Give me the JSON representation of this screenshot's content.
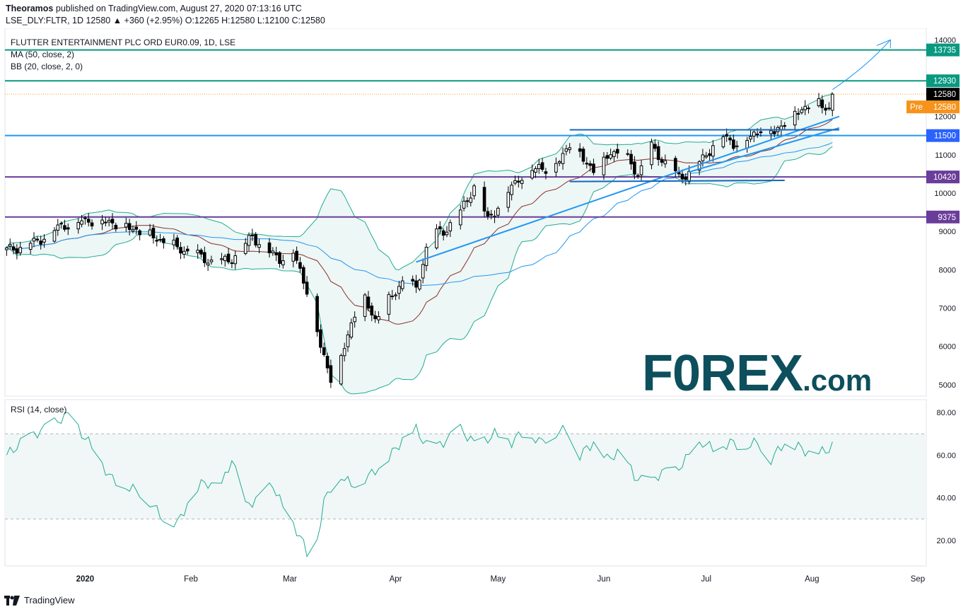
{
  "header": {
    "author": "Theoramos",
    "published": "published on TradingView.com, August 27, 2020 07:13:16 UTC",
    "symbol_line": "LSE_DLY:FLTR, 1D  12580  ▲ +360 (+2.95%)  O:12265  H:12580  L:12100  C:12580"
  },
  "legend": {
    "title": "FLUTTER ENTERTAINMENT PLC ORD EUR0.09, 1D, LSE",
    "ma": "MA (50, close, 2)",
    "bb": "BB (20, close, 2, 0)",
    "rsi": "RSI (14, close)"
  },
  "branding": {
    "tradingview": "TradingView",
    "forex": "F0REX",
    "forex_suffix": ".com"
  },
  "chart_data": {
    "type": "candlestick",
    "price_axis": {
      "ylim": [
        4700,
        14300
      ],
      "ticks": [
        5000,
        6000,
        7000,
        8000,
        9000,
        10000,
        11000,
        12000,
        13000,
        14000
      ]
    },
    "rsi_axis": {
      "ylim": [
        8,
        86
      ],
      "ticks": [
        20.0,
        40.0,
        60.0,
        80.0
      ],
      "bands": [
        30,
        70
      ]
    },
    "x_axis": {
      "labels": [
        {
          "text": "2020",
          "day": 23,
          "bold": true
        },
        {
          "text": "Feb",
          "day": 54
        },
        {
          "text": "Mar",
          "day": 83
        },
        {
          "text": "Apr",
          "day": 114
        },
        {
          "text": "May",
          "day": 144
        },
        {
          "text": "Jun",
          "day": 175
        },
        {
          "text": "Jul",
          "day": 205
        },
        {
          "text": "Aug",
          "day": 236
        },
        {
          "text": "Sep",
          "day": 267
        }
      ]
    },
    "level_labels": [
      {
        "value": 13735,
        "text": "13735",
        "color": "#089981"
      },
      {
        "value": 12930,
        "text": "12930",
        "color": "#089981"
      },
      {
        "value": 12580,
        "text": "12580",
        "color": "#000000"
      },
      {
        "value": 11500,
        "text": "11500",
        "color": "#2962ff"
      },
      {
        "value": 10420,
        "text": "10420",
        "color": "#6a3d9a"
      },
      {
        "value": 9375,
        "text": "9375",
        "color": "#6a3d9a"
      }
    ],
    "pre_label": {
      "tag": "Pre",
      "value": 12580,
      "text": "12580",
      "color": "#f7931a"
    },
    "horizontal_lines": [
      {
        "value": 13735,
        "color": "#089981"
      },
      {
        "value": 12930,
        "color": "#089981"
      },
      {
        "value": 11500,
        "color": "#2196f3"
      },
      {
        "value": 10420,
        "color": "#6a3d9a"
      },
      {
        "value": 9375,
        "color": "#6a3d9a"
      }
    ],
    "current_price": 12580,
    "close_anchors": [
      [
        0,
        8500
      ],
      [
        8,
        8700
      ],
      [
        16,
        9150
      ],
      [
        24,
        9300
      ],
      [
        30,
        9250
      ],
      [
        36,
        9100
      ],
      [
        42,
        8900
      ],
      [
        48,
        8650
      ],
      [
        55,
        8400
      ],
      [
        62,
        8150
      ],
      [
        68,
        8400
      ],
      [
        72,
        8900
      ],
      [
        76,
        8500
      ],
      [
        80,
        8300
      ],
      [
        84,
        8450
      ],
      [
        88,
        7500
      ],
      [
        92,
        6000
      ],
      [
        95,
        5200
      ],
      [
        98,
        5700
      ],
      [
        101,
        6600
      ],
      [
        104,
        7400
      ],
      [
        108,
        6700
      ],
      [
        112,
        7200
      ],
      [
        116,
        7700
      ],
      [
        120,
        7500
      ],
      [
        124,
        8900
      ],
      [
        128,
        9000
      ],
      [
        133,
        9500
      ],
      [
        137,
        10200
      ],
      [
        141,
        9300
      ],
      [
        145,
        9800
      ],
      [
        150,
        10400
      ],
      [
        156,
        10700
      ],
      [
        160,
        10600
      ],
      [
        165,
        11300
      ],
      [
        169,
        10900
      ],
      [
        173,
        10500
      ],
      [
        177,
        11100
      ],
      [
        181,
        11000
      ],
      [
        185,
        10500
      ],
      [
        189,
        11200
      ],
      [
        193,
        10800
      ],
      [
        197,
        10400
      ],
      [
        201,
        10600
      ],
      [
        205,
        11000
      ],
      [
        209,
        11550
      ],
      [
        213,
        11300
      ],
      [
        217,
        11400
      ],
      [
        221,
        11700
      ],
      [
        225,
        11600
      ],
      [
        229,
        11950
      ],
      [
        233,
        12200
      ],
      [
        237,
        12400
      ],
      [
        241,
        12200
      ],
      [
        244,
        12580
      ]
    ],
    "rsi_anchors": [
      [
        0,
        60
      ],
      [
        6,
        68
      ],
      [
        12,
        73
      ],
      [
        18,
        79
      ],
      [
        22,
        70
      ],
      [
        26,
        62
      ],
      [
        30,
        50
      ],
      [
        34,
        46
      ],
      [
        40,
        42
      ],
      [
        46,
        30
      ],
      [
        50,
        28
      ],
      [
        54,
        40
      ],
      [
        58,
        48
      ],
      [
        62,
        42
      ],
      [
        66,
        58
      ],
      [
        70,
        36
      ],
      [
        74,
        40
      ],
      [
        78,
        46
      ],
      [
        82,
        32
      ],
      [
        86,
        22
      ],
      [
        88,
        14
      ],
      [
        90,
        12
      ],
      [
        93,
        38
      ],
      [
        97,
        52
      ],
      [
        101,
        46
      ],
      [
        106,
        50
      ],
      [
        111,
        57
      ],
      [
        116,
        67
      ],
      [
        120,
        72
      ],
      [
        124,
        62
      ],
      [
        128,
        66
      ],
      [
        133,
        72
      ],
      [
        138,
        64
      ],
      [
        143,
        70
      ],
      [
        148,
        66
      ],
      [
        152,
        72
      ],
      [
        156,
        66
      ],
      [
        160,
        70
      ],
      [
        164,
        72
      ],
      [
        168,
        60
      ],
      [
        172,
        66
      ],
      [
        176,
        58
      ],
      [
        180,
        62
      ],
      [
        184,
        50
      ],
      [
        188,
        46
      ],
      [
        192,
        52
      ],
      [
        196,
        52
      ],
      [
        200,
        60
      ],
      [
        204,
        66
      ],
      [
        208,
        62
      ],
      [
        212,
        66
      ],
      [
        216,
        64
      ],
      [
        220,
        66
      ],
      [
        224,
        58
      ],
      [
        228,
        66
      ],
      [
        232,
        64
      ],
      [
        236,
        60
      ],
      [
        240,
        62
      ],
      [
        244,
        66
      ]
    ]
  }
}
